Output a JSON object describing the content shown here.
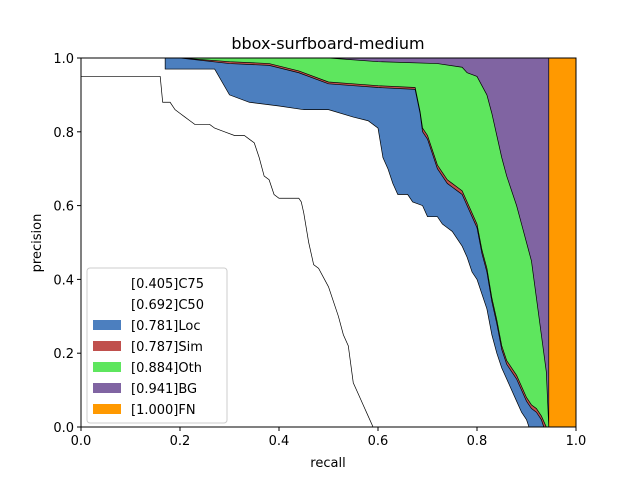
{
  "chart_data": {
    "type": "area",
    "title": "bbox-surfboard-medium",
    "xlabel": "recall",
    "ylabel": "precision",
    "xlim": [
      0.0,
      1.0
    ],
    "ylim": [
      0.0,
      1.0
    ],
    "xticks": [
      "0.0",
      "0.2",
      "0.4",
      "0.6",
      "0.8",
      "1.0"
    ],
    "yticks": [
      "0.0",
      "0.2",
      "0.4",
      "0.6",
      "0.8",
      "1.0"
    ],
    "grid": false,
    "legend_position": "lower-left",
    "series": [
      {
        "name": "[0.405]C75",
        "color": "#ffffff",
        "points": [
          [
            0,
            0.95
          ],
          [
            0.16,
            0.95
          ],
          [
            0.165,
            0.88
          ],
          [
            0.18,
            0.88
          ],
          [
            0.19,
            0.86
          ],
          [
            0.2,
            0.85
          ],
          [
            0.21,
            0.84
          ],
          [
            0.22,
            0.83
          ],
          [
            0.23,
            0.82
          ],
          [
            0.26,
            0.82
          ],
          [
            0.27,
            0.81
          ],
          [
            0.29,
            0.8
          ],
          [
            0.31,
            0.79
          ],
          [
            0.33,
            0.79
          ],
          [
            0.34,
            0.78
          ],
          [
            0.35,
            0.77
          ],
          [
            0.36,
            0.73
          ],
          [
            0.37,
            0.68
          ],
          [
            0.38,
            0.67
          ],
          [
            0.39,
            0.63
          ],
          [
            0.4,
            0.62
          ],
          [
            0.44,
            0.62
          ],
          [
            0.445,
            0.61
          ],
          [
            0.45,
            0.58
          ],
          [
            0.46,
            0.5
          ],
          [
            0.47,
            0.44
          ],
          [
            0.48,
            0.43
          ],
          [
            0.5,
            0.38
          ],
          [
            0.52,
            0.3
          ],
          [
            0.53,
            0.25
          ],
          [
            0.54,
            0.22
          ],
          [
            0.55,
            0.12
          ],
          [
            0.56,
            0.09
          ],
          [
            0.57,
            0.06
          ],
          [
            0.58,
            0.03
          ],
          [
            0.59,
            0.0
          ]
        ]
      },
      {
        "name": "[0.692]C50",
        "color": "#ffffff",
        "points": [
          [
            0,
            1.0
          ],
          [
            0.17,
            1.0
          ],
          [
            0.17,
            0.97
          ],
          [
            0.27,
            0.97
          ],
          [
            0.3,
            0.9
          ],
          [
            0.34,
            0.88
          ],
          [
            0.4,
            0.87
          ],
          [
            0.45,
            0.86
          ],
          [
            0.5,
            0.86
          ],
          [
            0.55,
            0.84
          ],
          [
            0.58,
            0.83
          ],
          [
            0.6,
            0.81
          ],
          [
            0.61,
            0.73
          ],
          [
            0.62,
            0.7
          ],
          [
            0.63,
            0.66
          ],
          [
            0.64,
            0.63
          ],
          [
            0.66,
            0.63
          ],
          [
            0.67,
            0.61
          ],
          [
            0.69,
            0.6
          ],
          [
            0.7,
            0.57
          ],
          [
            0.72,
            0.57
          ],
          [
            0.73,
            0.55
          ],
          [
            0.74,
            0.54
          ],
          [
            0.75,
            0.53
          ],
          [
            0.76,
            0.51
          ],
          [
            0.77,
            0.49
          ],
          [
            0.78,
            0.46
          ],
          [
            0.79,
            0.42
          ],
          [
            0.8,
            0.4
          ],
          [
            0.81,
            0.36
          ],
          [
            0.82,
            0.32
          ],
          [
            0.83,
            0.25
          ],
          [
            0.84,
            0.2
          ],
          [
            0.85,
            0.16
          ],
          [
            0.86,
            0.13
          ],
          [
            0.87,
            0.1
          ],
          [
            0.88,
            0.07
          ],
          [
            0.89,
            0.04
          ],
          [
            0.9,
            0.02
          ],
          [
            0.905,
            0.0
          ]
        ]
      },
      {
        "name": "[0.781]Loc",
        "color": "#4c7fbf",
        "points": [
          [
            0,
            1.0
          ],
          [
            0.2,
            1.0
          ],
          [
            0.3,
            0.985
          ],
          [
            0.38,
            0.98
          ],
          [
            0.44,
            0.96
          ],
          [
            0.5,
            0.93
          ],
          [
            0.55,
            0.925
          ],
          [
            0.6,
            0.92
          ],
          [
            0.675,
            0.915
          ],
          [
            0.685,
            0.85
          ],
          [
            0.69,
            0.8
          ],
          [
            0.7,
            0.78
          ],
          [
            0.71,
            0.74
          ],
          [
            0.72,
            0.7
          ],
          [
            0.73,
            0.68
          ],
          [
            0.74,
            0.66
          ],
          [
            0.75,
            0.65
          ],
          [
            0.76,
            0.64
          ],
          [
            0.77,
            0.63
          ],
          [
            0.78,
            0.6
          ],
          [
            0.79,
            0.57
          ],
          [
            0.8,
            0.54
          ],
          [
            0.81,
            0.47
          ],
          [
            0.82,
            0.42
          ],
          [
            0.83,
            0.34
          ],
          [
            0.84,
            0.28
          ],
          [
            0.85,
            0.21
          ],
          [
            0.86,
            0.17
          ],
          [
            0.87,
            0.15
          ],
          [
            0.88,
            0.13
          ],
          [
            0.89,
            0.1
          ],
          [
            0.9,
            0.07
          ],
          [
            0.91,
            0.05
          ],
          [
            0.92,
            0.04
          ],
          [
            0.93,
            0.02
          ],
          [
            0.935,
            0.0
          ]
        ]
      },
      {
        "name": "[0.787]Sim",
        "color": "#c0504d",
        "points": [
          [
            0,
            1.0
          ],
          [
            0.2,
            1.0
          ],
          [
            0.3,
            0.99
          ],
          [
            0.38,
            0.985
          ],
          [
            0.44,
            0.965
          ],
          [
            0.5,
            0.935
          ],
          [
            0.55,
            0.93
          ],
          [
            0.6,
            0.925
          ],
          [
            0.675,
            0.92
          ],
          [
            0.685,
            0.855
          ],
          [
            0.69,
            0.81
          ],
          [
            0.7,
            0.79
          ],
          [
            0.71,
            0.75
          ],
          [
            0.72,
            0.71
          ],
          [
            0.73,
            0.69
          ],
          [
            0.74,
            0.67
          ],
          [
            0.75,
            0.66
          ],
          [
            0.76,
            0.65
          ],
          [
            0.77,
            0.64
          ],
          [
            0.78,
            0.61
          ],
          [
            0.79,
            0.58
          ],
          [
            0.8,
            0.55
          ],
          [
            0.81,
            0.48
          ],
          [
            0.82,
            0.43
          ],
          [
            0.83,
            0.35
          ],
          [
            0.84,
            0.29
          ],
          [
            0.85,
            0.22
          ],
          [
            0.86,
            0.18
          ],
          [
            0.87,
            0.16
          ],
          [
            0.88,
            0.14
          ],
          [
            0.89,
            0.11
          ],
          [
            0.9,
            0.08
          ],
          [
            0.91,
            0.06
          ],
          [
            0.92,
            0.05
          ],
          [
            0.93,
            0.03
          ],
          [
            0.94,
            0.0
          ]
        ]
      },
      {
        "name": "[0.884]Oth",
        "color": "#5ee65e",
        "points": [
          [
            0,
            1.0
          ],
          [
            0.5,
            1.0
          ],
          [
            0.6,
            0.99
          ],
          [
            0.72,
            0.985
          ],
          [
            0.77,
            0.975
          ],
          [
            0.78,
            0.96
          ],
          [
            0.8,
            0.95
          ],
          [
            0.82,
            0.9
          ],
          [
            0.83,
            0.85
          ],
          [
            0.84,
            0.79
          ],
          [
            0.85,
            0.73
          ],
          [
            0.86,
            0.68
          ],
          [
            0.87,
            0.64
          ],
          [
            0.88,
            0.6
          ],
          [
            0.89,
            0.55
          ],
          [
            0.9,
            0.5
          ],
          [
            0.91,
            0.45
          ],
          [
            0.92,
            0.35
          ],
          [
            0.93,
            0.25
          ],
          [
            0.94,
            0.15
          ],
          [
            0.945,
            0.0
          ]
        ]
      },
      {
        "name": "[0.941]BG",
        "color": "#8064a2",
        "points": [
          [
            0,
            1.0
          ],
          [
            0.945,
            1.0
          ],
          [
            0.945,
            0.0
          ]
        ]
      },
      {
        "name": "[1.000]FN",
        "color": "#ff9900",
        "points": [
          [
            0,
            1.0
          ],
          [
            1.0,
            1.0
          ],
          [
            1.0,
            0.0
          ]
        ]
      }
    ]
  }
}
